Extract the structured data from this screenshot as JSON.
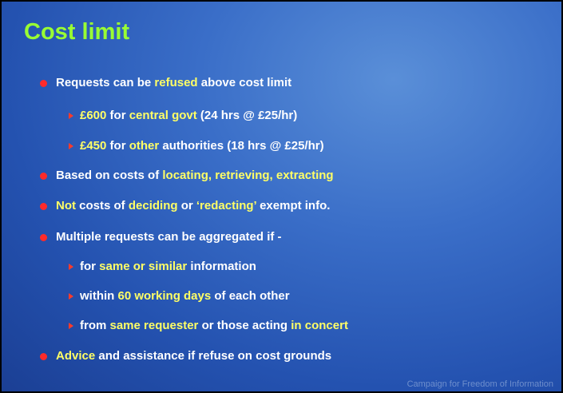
{
  "slide": {
    "title": "Cost limit",
    "footer": "Campaign for Freedom of Information",
    "items": [
      {
        "kind": "bullet",
        "runs": [
          {
            "text": "Requests can be ",
            "color": "white"
          },
          {
            "text": "refused",
            "color": "yellow"
          },
          {
            "text": " above cost limit",
            "color": "white"
          }
        ]
      },
      {
        "kind": "sub",
        "runs": [
          {
            "text": "£600",
            "color": "yellow"
          },
          {
            "text": " for ",
            "color": "white"
          },
          {
            "text": "central govt",
            "color": "yellow"
          },
          {
            "text": " (24 hrs @ £25/hr)",
            "color": "white"
          }
        ]
      },
      {
        "kind": "sub",
        "runs": [
          {
            "text": "£450",
            "color": "yellow"
          },
          {
            "text": " for ",
            "color": "white"
          },
          {
            "text": "other",
            "color": "yellow"
          },
          {
            "text": " authorities (18 hrs @ £25/hr)",
            "color": "white"
          }
        ]
      },
      {
        "kind": "bullet",
        "runs": [
          {
            "text": "Based on costs of ",
            "color": "white"
          },
          {
            "text": "locating, retrieving, extracting",
            "color": "yellow"
          }
        ]
      },
      {
        "kind": "bullet",
        "runs": [
          {
            "text": "Not",
            "color": "yellow"
          },
          {
            "text": " costs of ",
            "color": "white"
          },
          {
            "text": "deciding",
            "color": "yellow"
          },
          {
            "text": " or ",
            "color": "white"
          },
          {
            "text": "‘redacting’",
            "color": "yellow"
          },
          {
            "text": " exempt info.",
            "color": "white"
          }
        ]
      },
      {
        "kind": "bullet",
        "runs": [
          {
            "text": "Multiple requests can be aggregated if -",
            "color": "white"
          }
        ]
      },
      {
        "kind": "sub",
        "runs": [
          {
            "text": "for ",
            "color": "white"
          },
          {
            "text": "same or similar",
            "color": "yellow"
          },
          {
            "text": " information",
            "color": "white"
          }
        ]
      },
      {
        "kind": "sub",
        "runs": [
          {
            "text": "within ",
            "color": "white"
          },
          {
            "text": "60 working days",
            "color": "yellow"
          },
          {
            "text": " of each other",
            "color": "white"
          }
        ]
      },
      {
        "kind": "sub",
        "runs": [
          {
            "text": "from ",
            "color": "white"
          },
          {
            "text": "same requester",
            "color": "yellow"
          },
          {
            "text": " or those acting ",
            "color": "white"
          },
          {
            "text": "in concert",
            "color": "yellow"
          }
        ]
      },
      {
        "kind": "bullet",
        "runs": [
          {
            "text": "Advice",
            "color": "yellow"
          },
          {
            "text": " and assistance if refuse on cost grounds",
            "color": "white"
          }
        ]
      }
    ]
  }
}
